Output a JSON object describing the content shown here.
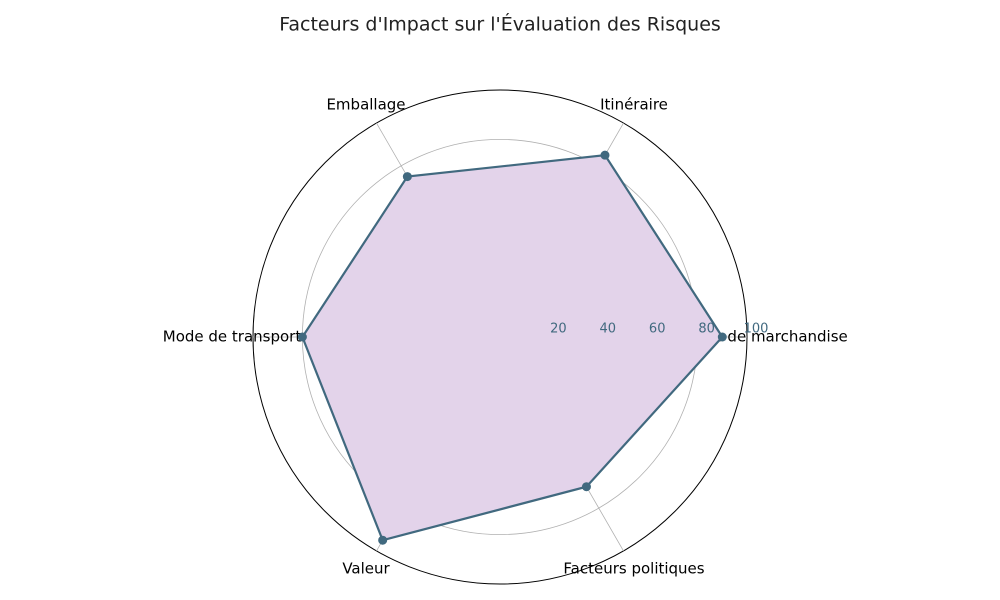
{
  "chart_data": {
    "type": "radar",
    "title": "Facteurs d'Impact sur l'Évaluation des Risques",
    "categories": [
      "Type de marchandise",
      "Itinéraire",
      "Emballage",
      "Mode de transport",
      "Valeur",
      "Facteurs politiques"
    ],
    "values": [
      90,
      85,
      75,
      80,
      95,
      70
    ],
    "color": "#41697f",
    "fill": "#e3d3ea",
    "ylim": [
      0,
      100
    ],
    "yticks": [
      20,
      40,
      60,
      80,
      100
    ],
    "grid": true
  }
}
